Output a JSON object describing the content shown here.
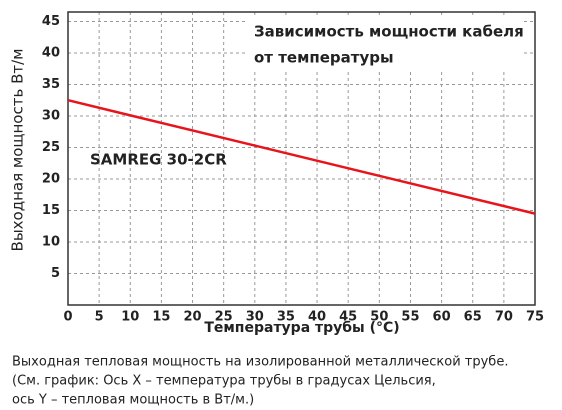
{
  "chart_data": {
    "type": "line",
    "title": [
      "Зависимость мощности кабеля",
      "от температуры"
    ],
    "annotation": "SAMREG 30-2CR",
    "xlabel": "Температура трубы (°C)",
    "ylabel": "Выходная мощность Вт/м",
    "x": [
      0,
      75
    ],
    "series": [
      {
        "name": "SAMREG 30-2CR",
        "color": "#e8141c",
        "values": [
          32.5,
          14.5
        ]
      }
    ],
    "xlim": [
      0,
      75
    ],
    "xticks": [
      0,
      5,
      10,
      15,
      20,
      25,
      30,
      35,
      40,
      45,
      50,
      55,
      60,
      65,
      70,
      75
    ],
    "ylim": [
      0,
      46.5
    ],
    "yticks": [
      5,
      10,
      15,
      20,
      25,
      30,
      35,
      40,
      45
    ],
    "grid": true
  },
  "caption": [
    "Выходная тепловая мощность на изолированной металлической трубе.",
    "(См. график: Ось X – температура трубы в градусах Цельсия,",
    "ось Y –  тепловая мощность в Вт/м.)"
  ]
}
